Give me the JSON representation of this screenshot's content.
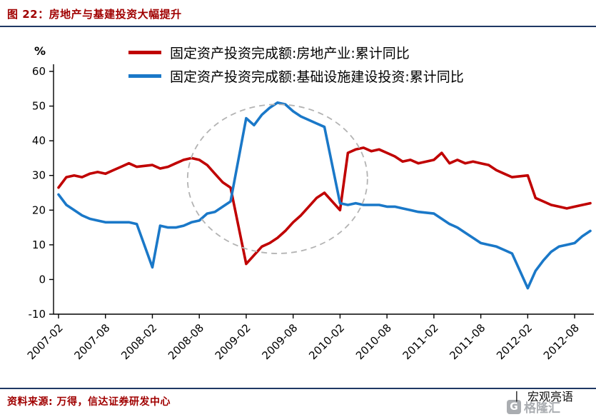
{
  "header": {
    "title": "图 22：房地产与基建投资大幅提升"
  },
  "colors": {
    "title_red": "#a00000",
    "divider_navy": "#1f3864",
    "source_red": "#a00000",
    "series_red": "#c00000",
    "series_blue": "#1a78c8",
    "ellipse_gray": "#b3b3b3",
    "logo_gray": "#a6a9ad"
  },
  "legend": [
    {
      "label": "固定资产投资完成额:房地产业:累计同比",
      "color": "#c00000"
    },
    {
      "label": "固定资产投资完成额:基础设施建设投资:累计同比",
      "color": "#1a78c8"
    }
  ],
  "footer": {
    "source": "资料来源: 万得，信达证券研发中心",
    "watermark_divider": "丨",
    "watermark": "宏观亮语",
    "logo_letter": "G",
    "logo_text": "格隆汇"
  },
  "chart_data": {
    "type": "line",
    "title": "房地产与基建投资大幅提升",
    "xlabel": "",
    "ylabel": "%",
    "unit_label": "%",
    "grid": false,
    "legend_position": "top",
    "ylim": [
      -10,
      60
    ],
    "yticks": [
      60,
      50,
      40,
      30,
      20,
      10,
      0,
      -10
    ],
    "x_ticks": [
      "2007-02",
      "2007-08",
      "2008-02",
      "2008-08",
      "2009-02",
      "2009-08",
      "2010-02",
      "2010-08",
      "2011-02",
      "2011-08",
      "2012-02",
      "2012-08"
    ],
    "x_months": [
      "2007-02",
      "2007-03",
      "2007-04",
      "2007-05",
      "2007-06",
      "2007-07",
      "2007-08",
      "2007-09",
      "2007-10",
      "2007-11",
      "2007-12",
      "2008-02",
      "2008-03",
      "2008-04",
      "2008-05",
      "2008-06",
      "2008-07",
      "2008-08",
      "2008-09",
      "2008-10",
      "2008-11",
      "2008-12",
      "2009-02",
      "2009-03",
      "2009-04",
      "2009-05",
      "2009-06",
      "2009-07",
      "2009-08",
      "2009-09",
      "2009-10",
      "2009-11",
      "2009-12",
      "2010-02",
      "2010-03",
      "2010-04",
      "2010-05",
      "2010-06",
      "2010-07",
      "2010-08",
      "2010-09",
      "2010-10",
      "2010-11",
      "2010-12",
      "2011-02",
      "2011-03",
      "2011-04",
      "2011-05",
      "2011-06",
      "2011-07",
      "2011-08",
      "2011-09",
      "2011-10",
      "2011-11",
      "2011-12",
      "2012-02",
      "2012-03",
      "2012-04",
      "2012-05",
      "2012-06",
      "2012-07",
      "2012-08",
      "2012-09",
      "2012-10"
    ],
    "series": [
      {
        "name": "固定资产投资完成额:房地产业:累计同比",
        "color": "#c00000",
        "values": [
          26.5,
          29.5,
          30.0,
          29.5,
          30.5,
          31.0,
          30.5,
          31.5,
          32.5,
          33.5,
          32.5,
          33.0,
          32.0,
          32.5,
          33.5,
          34.5,
          35.0,
          34.5,
          33.0,
          30.5,
          28.0,
          26.5,
          4.5,
          7.0,
          9.5,
          10.5,
          12.0,
          14.0,
          16.5,
          18.5,
          21.0,
          23.5,
          25.0,
          20.0,
          36.5,
          37.5,
          38.0,
          37.0,
          37.5,
          36.5,
          35.5,
          34.0,
          34.5,
          33.5,
          34.5,
          36.5,
          33.5,
          34.5,
          33.5,
          34.0,
          33.5,
          33.0,
          31.5,
          30.5,
          29.5,
          30.0,
          23.5,
          22.5,
          21.5,
          21.0,
          20.5,
          21.0,
          21.5,
          22.0
        ]
      },
      {
        "name": "固定资产投资完成额:基础设施建设投资:累计同比",
        "color": "#1a78c8",
        "values": [
          24.5,
          21.5,
          20.0,
          18.5,
          17.5,
          17.0,
          16.5,
          16.5,
          16.5,
          16.5,
          16.0,
          3.5,
          15.5,
          15.0,
          15.0,
          15.5,
          16.5,
          17.0,
          19.0,
          19.5,
          21.0,
          22.5,
          46.5,
          44.5,
          47.5,
          49.5,
          51.0,
          50.5,
          48.5,
          47.0,
          46.0,
          45.0,
          44.0,
          22.0,
          21.5,
          22.0,
          21.5,
          21.5,
          21.5,
          21.0,
          21.0,
          20.5,
          20.0,
          19.5,
          19.0,
          17.5,
          16.0,
          15.0,
          13.5,
          12.0,
          10.5,
          10.0,
          9.5,
          8.5,
          7.5,
          -2.5,
          2.5,
          5.5,
          8.0,
          9.5,
          10.0,
          10.5,
          12.5,
          14.0
        ]
      }
    ],
    "annotation_ellipse": {
      "center_month": "2009-06",
      "center_value": 29,
      "rx_months": 11.5,
      "ry_units": 21.5,
      "color": "#b3b3b3",
      "dash": "8 6"
    }
  }
}
